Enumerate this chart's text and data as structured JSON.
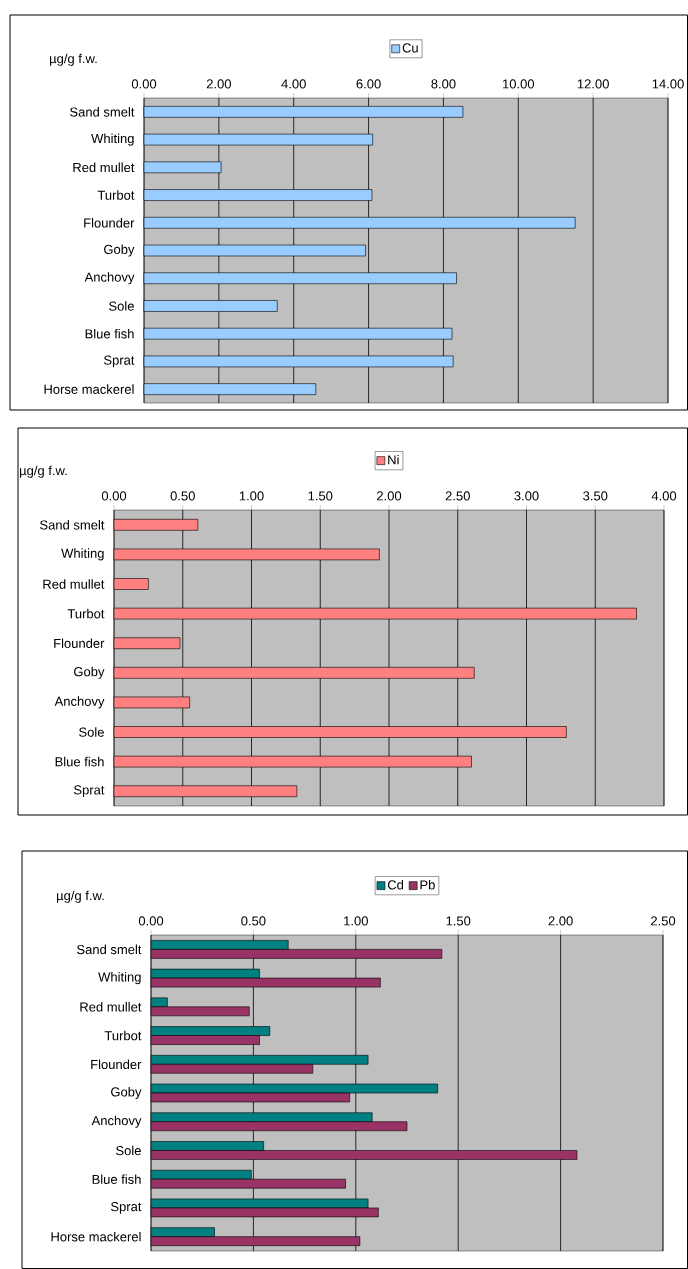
{
  "chart_data": [
    {
      "type": "bar",
      "orientation": "horizontal",
      "xlabel": "µg/g f.w.",
      "categories": [
        "Sand smelt",
        "Whiting",
        "Red mullet",
        "Turbot",
        "Flounder",
        "Goby",
        "Anchovy",
        "Sole",
        "Blue fish",
        "Sprat",
        "Horse mackerel"
      ],
      "series": [
        {
          "name": "Cu",
          "color": "#99ccff",
          "values": [
            8.52,
            6.11,
            2.06,
            6.09,
            11.52,
            5.92,
            8.35,
            3.56,
            8.23,
            8.26,
            4.59
          ]
        }
      ],
      "xlim": [
        0,
        14
      ],
      "xticks": [
        {
          "value": 0,
          "label": "0.00"
        },
        {
          "value": 2,
          "label": "2.00"
        },
        {
          "value": 4,
          "label": "4.00"
        },
        {
          "value": 6,
          "label": "6.00"
        },
        {
          "value": 8,
          "label": "8.00"
        },
        {
          "value": 10,
          "label": "10.00"
        },
        {
          "value": 12,
          "label": "12.00"
        },
        {
          "value": 14,
          "label": "14.00"
        }
      ],
      "grid": "x",
      "legend": "top"
    },
    {
      "type": "bar",
      "orientation": "horizontal",
      "xlabel": "µg/g f.w.",
      "categories": [
        "Sand smelt",
        "Whiting",
        "Red mullet",
        "Turbot",
        "Flounder",
        "Goby",
        "Anchovy",
        "Sole",
        "Blue fish",
        "Sprat"
      ],
      "series": [
        {
          "name": "Ni",
          "color": "#ff8080",
          "values": [
            0.61,
            1.93,
            0.25,
            3.8,
            0.48,
            2.62,
            0.55,
            3.29,
            2.6,
            1.33
          ]
        }
      ],
      "xlim": [
        0,
        4
      ],
      "xticks": [
        {
          "value": 0,
          "label": "0.00"
        },
        {
          "value": 0.5,
          "label": "0.50"
        },
        {
          "value": 1,
          "label": "1.00"
        },
        {
          "value": 1.5,
          "label": "1.50"
        },
        {
          "value": 2,
          "label": "2.00"
        },
        {
          "value": 2.5,
          "label": "2.50"
        },
        {
          "value": 3,
          "label": "3.00"
        },
        {
          "value": 3.5,
          "label": "3.50"
        },
        {
          "value": 4,
          "label": "4.00"
        }
      ],
      "grid": "x",
      "legend": "top"
    },
    {
      "type": "bar",
      "orientation": "horizontal",
      "xlabel": "µg/g f.w.",
      "categories": [
        "Sand smelt",
        "Whiting",
        "Red mullet",
        "Turbot",
        "Flounder",
        "Goby",
        "Anchovy",
        "Sole",
        "Blue fish",
        "Sprat",
        "Horse mackerel"
      ],
      "series": [
        {
          "name": "Cd",
          "color": "#008080",
          "values": [
            0.67,
            0.53,
            0.08,
            0.58,
            1.06,
            1.4,
            1.08,
            0.55,
            0.49,
            1.06,
            0.31
          ]
        },
        {
          "name": "Pb",
          "color": "#993366",
          "values": [
            1.42,
            1.12,
            0.48,
            0.53,
            0.79,
            0.97,
            1.25,
            2.08,
            0.95,
            1.11,
            1.02
          ]
        }
      ],
      "xlim": [
        0,
        2.5
      ],
      "xticks": [
        {
          "value": 0,
          "label": "0.00"
        },
        {
          "value": 0.5,
          "label": "0.50"
        },
        {
          "value": 1,
          "label": "1.00"
        },
        {
          "value": 1.5,
          "label": "1.50"
        },
        {
          "value": 2,
          "label": "2.00"
        },
        {
          "value": 2.5,
          "label": "2.50"
        }
      ],
      "grid": "x",
      "legend": "top"
    }
  ]
}
